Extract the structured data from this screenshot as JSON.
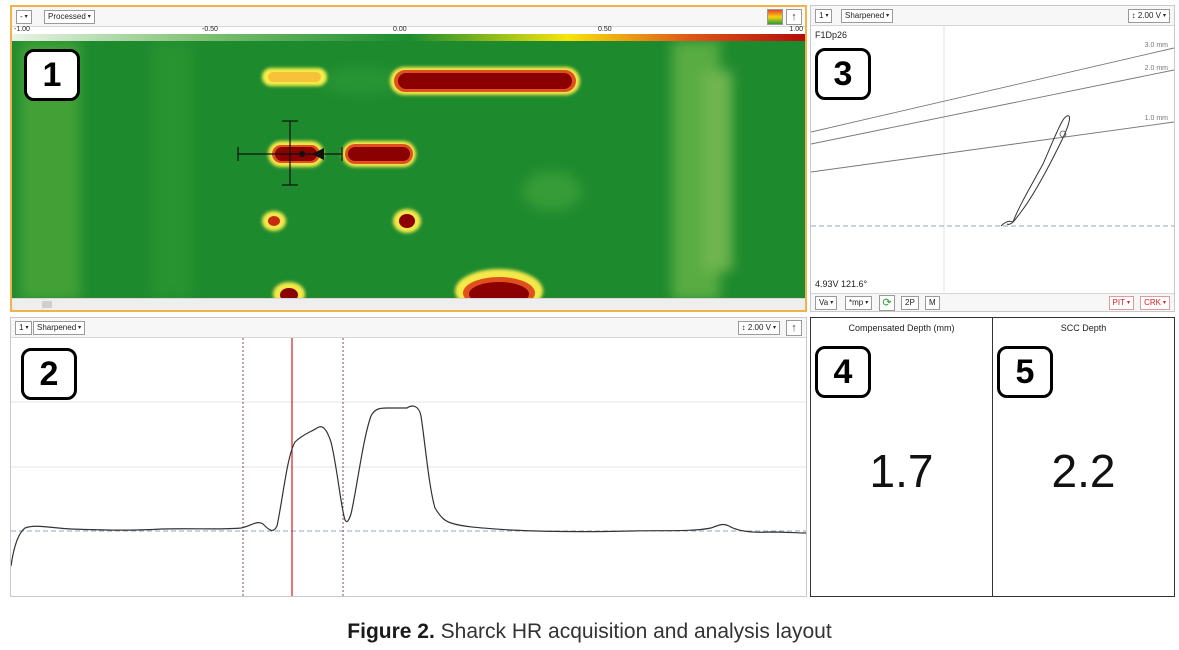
{
  "panel1": {
    "badge": "1",
    "toolbar": {
      "menu_button": "-",
      "mode": "Processed"
    },
    "colorbar": {
      "ticks": [
        "-1.00",
        "-0.50",
        "0.00",
        "0.50",
        "1.00"
      ]
    }
  },
  "panel2": {
    "badge": "2",
    "toolbar": {
      "channel": "1",
      "mode": "Sharpened",
      "voltage": "2.00 V"
    }
  },
  "panel3": {
    "badge": "3",
    "toolbar": {
      "channel": "1",
      "mode": "Sharpened",
      "voltage": "2.00 V"
    },
    "signal_name": "F1Dp26",
    "depth_lines": [
      "3.0 mm",
      "2.0 mm",
      "1.0 mm"
    ],
    "readout": "4.93V 121.6°",
    "bottom_buttons": [
      "Va",
      "*mp",
      "2P",
      "M"
    ],
    "flag_buttons": [
      "PIT",
      "CRK"
    ]
  },
  "panel4": {
    "badge": "4",
    "title": "Compensated Depth (mm)",
    "value": "1.7"
  },
  "panel5": {
    "badge": "5",
    "title": "SCC Depth",
    "value": "2.2"
  },
  "caption": {
    "label": "Figure 2.",
    "text": " Sharck HR acquisition and analysis layout"
  },
  "colors": {
    "active_border": "#f2b24a",
    "flaw_red": "#8b0000",
    "background_green": "#1b8c2f",
    "cursor_red": "#d21e1e"
  }
}
